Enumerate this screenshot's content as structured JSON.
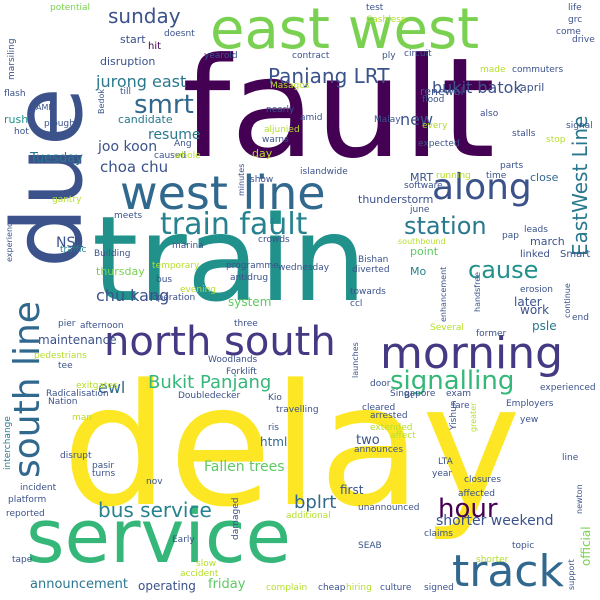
{
  "palette": {
    "dark_purple": "#440154",
    "indigo": "#3b528b",
    "teal": "#21918c",
    "green": "#5ec962",
    "yellow": "#fde725",
    "light_green": "#b5de2b"
  },
  "words": [
    {
      "text": "delay",
      "color": "#fde725"
    },
    {
      "text": "train",
      "color": "#21918c"
    },
    {
      "text": "fault",
      "color": "#440154"
    },
    {
      "text": "due",
      "color": "#3b528b"
    },
    {
      "text": "service",
      "color": "#35b779"
    },
    {
      "text": "east west",
      "color": "#7ad151"
    },
    {
      "text": "west line",
      "color": "#31688e"
    },
    {
      "text": "train fault",
      "color": "#26828e"
    },
    {
      "text": "north south",
      "color": "#443983"
    },
    {
      "text": "morning",
      "color": "#443983"
    },
    {
      "text": "south line",
      "color": "#31688e"
    },
    {
      "text": "track",
      "color": "#31688e"
    },
    {
      "text": "along",
      "color": "#3b528b"
    },
    {
      "text": "signalling",
      "color": "#35b779"
    },
    {
      "text": "smrt",
      "color": "#31688e"
    },
    {
      "text": "station",
      "color": "#2a788e"
    },
    {
      "text": "cause",
      "color": "#21918c"
    },
    {
      "text": "hour",
      "color": "#440154"
    },
    {
      "text": "bus service",
      "color": "#26828e"
    },
    {
      "text": "Panjang LRT",
      "color": "#3b528b"
    },
    {
      "text": "EastWest Line",
      "color": "#2a788e"
    },
    {
      "text": "sunday",
      "color": "#3b528b"
    },
    {
      "text": "Bukit Panjang",
      "color": "#35b779"
    },
    {
      "text": "jurong east",
      "color": "#2a788e"
    },
    {
      "text": "bukit batok",
      "color": "#3b528b"
    },
    {
      "text": "new",
      "color": "#3b528b"
    },
    {
      "text": "chu kang",
      "color": "#3b528b"
    },
    {
      "text": "shorter weekend",
      "color": "#3b528b"
    },
    {
      "text": "bplrt",
      "color": "#31688e"
    },
    {
      "text": "choa chu",
      "color": "#3b528b"
    },
    {
      "text": "resume",
      "color": "#2a788e"
    },
    {
      "text": "joo koon",
      "color": "#3b528b"
    },
    {
      "text": "ewl",
      "color": "#31688e"
    },
    {
      "text": "NSL",
      "color": "#3b528b"
    },
    {
      "text": "Fallen trees",
      "color": "#5ec962"
    },
    {
      "text": "announcement",
      "color": "#2a788e"
    },
    {
      "text": "operating",
      "color": "#3b528b"
    },
    {
      "text": "friday",
      "color": "#5ec962"
    },
    {
      "text": "Tuesday",
      "color": "#2a788e"
    },
    {
      "text": "start",
      "color": "#3b528b"
    },
    {
      "text": "hit",
      "color": "#440154"
    },
    {
      "text": "disruption",
      "color": "#3b528b"
    },
    {
      "text": "candidate",
      "color": "#2a788e"
    },
    {
      "text": "maintenance",
      "color": "#3b528b"
    },
    {
      "text": "system",
      "color": "#5ec962"
    },
    {
      "text": "work",
      "color": "#3b528b"
    },
    {
      "text": "two",
      "color": "#3b528b"
    },
    {
      "text": "first",
      "color": "#3b528b"
    },
    {
      "text": "html",
      "color": "#31688e"
    },
    {
      "text": "later",
      "color": "#3b528b"
    },
    {
      "text": "march",
      "color": "#3b528b"
    },
    {
      "text": "Smart",
      "color": "#3b528b"
    },
    {
      "text": "linked",
      "color": "#3b528b"
    },
    {
      "text": "psle",
      "color": "#2a788e"
    },
    {
      "text": "close",
      "color": "#31688e"
    },
    {
      "text": "april",
      "color": "#3b528b"
    },
    {
      "text": "renewal",
      "color": "#3b528b"
    },
    {
      "text": "thunderstorm",
      "color": "#3b528b"
    },
    {
      "text": "thursday",
      "color": "#7ad151"
    },
    {
      "text": "point",
      "color": "#5ec962"
    },
    {
      "text": "Mo",
      "color": "#26828e"
    },
    {
      "text": "MRT",
      "color": "#3b528b"
    },
    {
      "text": "test",
      "color": "#3b528b"
    },
    {
      "text": "life",
      "color": "#3b528b"
    },
    {
      "text": "drive",
      "color": "#3b528b"
    },
    {
      "text": "Cashless",
      "color": "#b5de2b"
    },
    {
      "text": "potential",
      "color": "#7ad151"
    },
    {
      "text": "marsiling",
      "color": "#3b528b"
    },
    {
      "text": "flash",
      "color": "#3b528b"
    },
    {
      "text": "hot",
      "color": "#3b528b"
    },
    {
      "text": "rush",
      "color": "#21918c"
    },
    {
      "text": "AMK",
      "color": "#3b528b"
    },
    {
      "text": "gantry",
      "color": "#b5de2b"
    },
    {
      "text": "experience",
      "color": "#3b528b"
    },
    {
      "text": "traffic",
      "color": "#26828e"
    },
    {
      "text": "Building",
      "color": "#3b528b"
    },
    {
      "text": "pier",
      "color": "#3b528b"
    },
    {
      "text": "tee",
      "color": "#3b528b"
    },
    {
      "text": "platform",
      "color": "#3b528b"
    },
    {
      "text": "incident",
      "color": "#3b528b"
    },
    {
      "text": "reported",
      "color": "#3b528b"
    },
    {
      "text": "tape",
      "color": "#3b528b"
    },
    {
      "text": "interchange",
      "color": "#2a788e"
    },
    {
      "text": "Radicalisation",
      "color": "#3b528b"
    },
    {
      "text": "Nation",
      "color": "#3b528b"
    },
    {
      "text": "Woodlands",
      "color": "#3b528b"
    },
    {
      "text": "Forklift",
      "color": "#3b528b"
    },
    {
      "text": "Doubledecker",
      "color": "#3b528b"
    },
    {
      "text": "disrupt",
      "color": "#3b528b"
    },
    {
      "text": "turns",
      "color": "#3b528b"
    },
    {
      "text": "pasir",
      "color": "#3b528b"
    },
    {
      "text": "Early",
      "color": "#3b528b"
    },
    {
      "text": "slow",
      "color": "#b5de2b"
    },
    {
      "text": "accident",
      "color": "#b5de2b"
    },
    {
      "text": "complain",
      "color": "#b5de2b"
    },
    {
      "text": "cheap",
      "color": "#3b528b"
    },
    {
      "text": "hiring",
      "color": "#b5de2b"
    },
    {
      "text": "culture",
      "color": "#3b528b"
    },
    {
      "text": "signed",
      "color": "#3b528b"
    },
    {
      "text": "shorter",
      "color": "#b5de2b"
    },
    {
      "text": "support",
      "color": "#3b528b"
    },
    {
      "text": "official",
      "color": "#7ad151"
    },
    {
      "text": "newton",
      "color": "#3b528b"
    },
    {
      "text": "SEAB",
      "color": "#3b528b"
    },
    {
      "text": "claims",
      "color": "#3b528b"
    },
    {
      "text": "affected",
      "color": "#3b528b"
    },
    {
      "text": "closures",
      "color": "#3b528b"
    },
    {
      "text": "year",
      "color": "#3b528b"
    },
    {
      "text": "LTA",
      "color": "#3b528b"
    },
    {
      "text": "Yishun",
      "color": "#3b528b"
    },
    {
      "text": "greater",
      "color": "#b5de2b"
    },
    {
      "text": "line",
      "color": "#3b528b"
    },
    {
      "text": "yew",
      "color": "#3b528b"
    },
    {
      "text": "Employers",
      "color": "#3b528b"
    },
    {
      "text": "experienced",
      "color": "#3b528b"
    },
    {
      "text": "exam",
      "color": "#3b528b"
    },
    {
      "text": "fare",
      "color": "#3b528b"
    },
    {
      "text": "affect",
      "color": "#b5de2b"
    },
    {
      "text": "arrested",
      "color": "#3b528b"
    },
    {
      "text": "extended",
      "color": "#b5de2b"
    },
    {
      "text": "announces",
      "color": "#3b528b"
    },
    {
      "text": "unannounced",
      "color": "#3b528b"
    },
    {
      "text": "additional",
      "color": "#b5de2b"
    },
    {
      "text": "damaged",
      "color": "#3b528b"
    },
    {
      "text": "nov",
      "color": "#3b528b"
    },
    {
      "text": "ris",
      "color": "#3b528b"
    },
    {
      "text": "cleared",
      "color": "#3b528b"
    },
    {
      "text": "Bt",
      "color": "#3b528b"
    },
    {
      "text": "Singapore",
      "color": "#3b528b"
    },
    {
      "text": "Kio",
      "color": "#3b528b"
    },
    {
      "text": "travelling",
      "color": "#3b528b"
    },
    {
      "text": "launches",
      "color": "#3b528b"
    },
    {
      "text": "door",
      "color": "#3b528b"
    },
    {
      "text": "exitgates",
      "color": "#b5de2b"
    },
    {
      "text": "pedestrians",
      "color": "#b5de2b"
    },
    {
      "text": "man",
      "color": "#b5de2b"
    },
    {
      "text": "afternoon",
      "color": "#3b528b"
    },
    {
      "text": "three",
      "color": "#3b528b"
    },
    {
      "text": "Several",
      "color": "#b5de2b"
    },
    {
      "text": "former",
      "color": "#3b528b"
    },
    {
      "text": "end",
      "color": "#3b528b"
    },
    {
      "text": "continue",
      "color": "#3b528b"
    },
    {
      "text": "erosion",
      "color": "#3b528b"
    },
    {
      "text": "handsfree",
      "color": "#3b528b"
    },
    {
      "text": "enhancement",
      "color": "#3b528b"
    },
    {
      "text": "pap",
      "color": "#3b528b"
    },
    {
      "text": "leads",
      "color": "#3b528b"
    },
    {
      "text": "parts",
      "color": "#3b528b"
    },
    {
      "text": "southbound",
      "color": "#b5de2b"
    },
    {
      "text": "towards",
      "color": "#3b528b"
    },
    {
      "text": "ccl",
      "color": "#3b528b"
    },
    {
      "text": "Bishan",
      "color": "#3b528b"
    },
    {
      "text": "diverted",
      "color": "#3b528b"
    },
    {
      "text": "wednesday",
      "color": "#3b528b"
    },
    {
      "text": "programme",
      "color": "#3b528b"
    },
    {
      "text": "antidrug",
      "color": "#3b528b"
    },
    {
      "text": "operation",
      "color": "#3b528b"
    },
    {
      "text": "evening",
      "color": "#b5de2b"
    },
    {
      "text": "bus",
      "color": "#3b528b"
    },
    {
      "text": "temporary",
      "color": "#b5de2b"
    },
    {
      "text": "marina",
      "color": "#3b528b"
    },
    {
      "text": "meets",
      "color": "#3b528b"
    },
    {
      "text": "crowds",
      "color": "#3b528b"
    },
    {
      "text": "june",
      "color": "#3b528b"
    },
    {
      "text": "software",
      "color": "#3b528b"
    },
    {
      "text": "running",
      "color": "#b5de2b"
    },
    {
      "text": "islandwide",
      "color": "#3b528b"
    },
    {
      "text": "show",
      "color": "#3b528b"
    },
    {
      "text": "minutes",
      "color": "#3b528b"
    },
    {
      "text": "day",
      "color": "#b5de2b"
    },
    {
      "text": "caused",
      "color": "#3b528b"
    },
    {
      "text": "whole",
      "color": "#b5de2b"
    },
    {
      "text": "Ang",
      "color": "#3b528b"
    },
    {
      "text": "Bedok",
      "color": "#3b528b"
    },
    {
      "text": "till",
      "color": "#3b528b"
    },
    {
      "text": "ploughs",
      "color": "#3b528b"
    },
    {
      "text": "yearold",
      "color": "#3b528b"
    },
    {
      "text": "doesnt",
      "color": "#3b528b"
    },
    {
      "text": "contract",
      "color": "#3b528b"
    },
    {
      "text": "ply",
      "color": "#3b528b"
    },
    {
      "text": "circuit",
      "color": "#3b528b"
    },
    {
      "text": "grc",
      "color": "#3b528b"
    },
    {
      "text": "come",
      "color": "#3b528b"
    },
    {
      "text": "made",
      "color": "#b5de2b"
    },
    {
      "text": "commuters",
      "color": "#3b528b"
    },
    {
      "text": "flood",
      "color": "#3b528b"
    },
    {
      "text": "Masagos",
      "color": "#b5de2b"
    },
    {
      "text": "nearly",
      "color": "#3b528b"
    },
    {
      "text": "amid",
      "color": "#3b528b"
    },
    {
      "text": "Malay",
      "color": "#3b528b"
    },
    {
      "text": "also",
      "color": "#3b528b"
    },
    {
      "text": "every",
      "color": "#b5de2b"
    },
    {
      "text": "expected",
      "color": "#3b528b"
    },
    {
      "text": "stalls",
      "color": "#3b528b"
    },
    {
      "text": "signal",
      "color": "#3b528b"
    },
    {
      "text": "stop",
      "color": "#b5de2b"
    },
    {
      "text": "aljunied",
      "color": "#b5de2b"
    },
    {
      "text": "warns",
      "color": "#3b528b"
    },
    {
      "text": "time",
      "color": "#3b528b"
    },
    {
      "text": "topic",
      "color": "#3b528b"
    }
  ]
}
